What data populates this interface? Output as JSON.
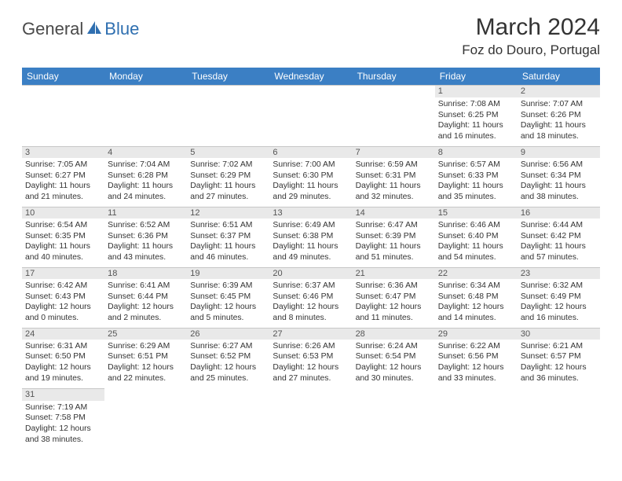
{
  "logo": {
    "general": "General",
    "blue": "Blue"
  },
  "title": "March 2024",
  "location": "Foz do Douro, Portugal",
  "colors": {
    "header_bg": "#3b7fc4",
    "header_fg": "#ffffff",
    "daynum_bg": "#e9e9e9",
    "border": "#c7c7c7",
    "text": "#333333",
    "logo_blue": "#2f6fb0",
    "logo_gray": "#4a4a4a"
  },
  "dow": [
    "Sunday",
    "Monday",
    "Tuesday",
    "Wednesday",
    "Thursday",
    "Friday",
    "Saturday"
  ],
  "weeks": [
    [
      null,
      null,
      null,
      null,
      null,
      {
        "d": "1",
        "sr": "Sunrise: 7:08 AM",
        "ss": "Sunset: 6:25 PM",
        "dl1": "Daylight: 11 hours",
        "dl2": "and 16 minutes."
      },
      {
        "d": "2",
        "sr": "Sunrise: 7:07 AM",
        "ss": "Sunset: 6:26 PM",
        "dl1": "Daylight: 11 hours",
        "dl2": "and 18 minutes."
      }
    ],
    [
      {
        "d": "3",
        "sr": "Sunrise: 7:05 AM",
        "ss": "Sunset: 6:27 PM",
        "dl1": "Daylight: 11 hours",
        "dl2": "and 21 minutes."
      },
      {
        "d": "4",
        "sr": "Sunrise: 7:04 AM",
        "ss": "Sunset: 6:28 PM",
        "dl1": "Daylight: 11 hours",
        "dl2": "and 24 minutes."
      },
      {
        "d": "5",
        "sr": "Sunrise: 7:02 AM",
        "ss": "Sunset: 6:29 PM",
        "dl1": "Daylight: 11 hours",
        "dl2": "and 27 minutes."
      },
      {
        "d": "6",
        "sr": "Sunrise: 7:00 AM",
        "ss": "Sunset: 6:30 PM",
        "dl1": "Daylight: 11 hours",
        "dl2": "and 29 minutes."
      },
      {
        "d": "7",
        "sr": "Sunrise: 6:59 AM",
        "ss": "Sunset: 6:31 PM",
        "dl1": "Daylight: 11 hours",
        "dl2": "and 32 minutes."
      },
      {
        "d": "8",
        "sr": "Sunrise: 6:57 AM",
        "ss": "Sunset: 6:33 PM",
        "dl1": "Daylight: 11 hours",
        "dl2": "and 35 minutes."
      },
      {
        "d": "9",
        "sr": "Sunrise: 6:56 AM",
        "ss": "Sunset: 6:34 PM",
        "dl1": "Daylight: 11 hours",
        "dl2": "and 38 minutes."
      }
    ],
    [
      {
        "d": "10",
        "sr": "Sunrise: 6:54 AM",
        "ss": "Sunset: 6:35 PM",
        "dl1": "Daylight: 11 hours",
        "dl2": "and 40 minutes."
      },
      {
        "d": "11",
        "sr": "Sunrise: 6:52 AM",
        "ss": "Sunset: 6:36 PM",
        "dl1": "Daylight: 11 hours",
        "dl2": "and 43 minutes."
      },
      {
        "d": "12",
        "sr": "Sunrise: 6:51 AM",
        "ss": "Sunset: 6:37 PM",
        "dl1": "Daylight: 11 hours",
        "dl2": "and 46 minutes."
      },
      {
        "d": "13",
        "sr": "Sunrise: 6:49 AM",
        "ss": "Sunset: 6:38 PM",
        "dl1": "Daylight: 11 hours",
        "dl2": "and 49 minutes."
      },
      {
        "d": "14",
        "sr": "Sunrise: 6:47 AM",
        "ss": "Sunset: 6:39 PM",
        "dl1": "Daylight: 11 hours",
        "dl2": "and 51 minutes."
      },
      {
        "d": "15",
        "sr": "Sunrise: 6:46 AM",
        "ss": "Sunset: 6:40 PM",
        "dl1": "Daylight: 11 hours",
        "dl2": "and 54 minutes."
      },
      {
        "d": "16",
        "sr": "Sunrise: 6:44 AM",
        "ss": "Sunset: 6:42 PM",
        "dl1": "Daylight: 11 hours",
        "dl2": "and 57 minutes."
      }
    ],
    [
      {
        "d": "17",
        "sr": "Sunrise: 6:42 AM",
        "ss": "Sunset: 6:43 PM",
        "dl1": "Daylight: 12 hours",
        "dl2": "and 0 minutes."
      },
      {
        "d": "18",
        "sr": "Sunrise: 6:41 AM",
        "ss": "Sunset: 6:44 PM",
        "dl1": "Daylight: 12 hours",
        "dl2": "and 2 minutes."
      },
      {
        "d": "19",
        "sr": "Sunrise: 6:39 AM",
        "ss": "Sunset: 6:45 PM",
        "dl1": "Daylight: 12 hours",
        "dl2": "and 5 minutes."
      },
      {
        "d": "20",
        "sr": "Sunrise: 6:37 AM",
        "ss": "Sunset: 6:46 PM",
        "dl1": "Daylight: 12 hours",
        "dl2": "and 8 minutes."
      },
      {
        "d": "21",
        "sr": "Sunrise: 6:36 AM",
        "ss": "Sunset: 6:47 PM",
        "dl1": "Daylight: 12 hours",
        "dl2": "and 11 minutes."
      },
      {
        "d": "22",
        "sr": "Sunrise: 6:34 AM",
        "ss": "Sunset: 6:48 PM",
        "dl1": "Daylight: 12 hours",
        "dl2": "and 14 minutes."
      },
      {
        "d": "23",
        "sr": "Sunrise: 6:32 AM",
        "ss": "Sunset: 6:49 PM",
        "dl1": "Daylight: 12 hours",
        "dl2": "and 16 minutes."
      }
    ],
    [
      {
        "d": "24",
        "sr": "Sunrise: 6:31 AM",
        "ss": "Sunset: 6:50 PM",
        "dl1": "Daylight: 12 hours",
        "dl2": "and 19 minutes."
      },
      {
        "d": "25",
        "sr": "Sunrise: 6:29 AM",
        "ss": "Sunset: 6:51 PM",
        "dl1": "Daylight: 12 hours",
        "dl2": "and 22 minutes."
      },
      {
        "d": "26",
        "sr": "Sunrise: 6:27 AM",
        "ss": "Sunset: 6:52 PM",
        "dl1": "Daylight: 12 hours",
        "dl2": "and 25 minutes."
      },
      {
        "d": "27",
        "sr": "Sunrise: 6:26 AM",
        "ss": "Sunset: 6:53 PM",
        "dl1": "Daylight: 12 hours",
        "dl2": "and 27 minutes."
      },
      {
        "d": "28",
        "sr": "Sunrise: 6:24 AM",
        "ss": "Sunset: 6:54 PM",
        "dl1": "Daylight: 12 hours",
        "dl2": "and 30 minutes."
      },
      {
        "d": "29",
        "sr": "Sunrise: 6:22 AM",
        "ss": "Sunset: 6:56 PM",
        "dl1": "Daylight: 12 hours",
        "dl2": "and 33 minutes."
      },
      {
        "d": "30",
        "sr": "Sunrise: 6:21 AM",
        "ss": "Sunset: 6:57 PM",
        "dl1": "Daylight: 12 hours",
        "dl2": "and 36 minutes."
      }
    ],
    [
      {
        "d": "31",
        "sr": "Sunrise: 7:19 AM",
        "ss": "Sunset: 7:58 PM",
        "dl1": "Daylight: 12 hours",
        "dl2": "and 38 minutes."
      },
      null,
      null,
      null,
      null,
      null,
      null
    ]
  ]
}
